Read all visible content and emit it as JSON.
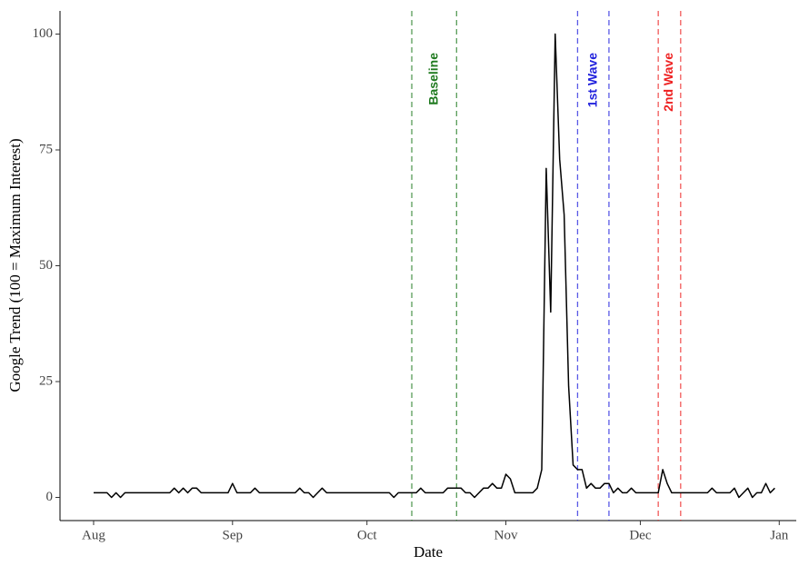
{
  "chart_data": {
    "type": "line",
    "xlabel": "Date",
    "ylabel": "Google Trend (100 = Maximum Interest)",
    "x": [
      0,
      1,
      2,
      3,
      4,
      5,
      6,
      7,
      8,
      9,
      10,
      11,
      12,
      13,
      14,
      15,
      16,
      17,
      18,
      19,
      20,
      21,
      22,
      23,
      24,
      25,
      26,
      27,
      28,
      29,
      30,
      31,
      32,
      33,
      34,
      35,
      36,
      37,
      38,
      39,
      40,
      41,
      42,
      43,
      44,
      45,
      46,
      47,
      48,
      49,
      50,
      51,
      52,
      53,
      54,
      55,
      56,
      57,
      58,
      59,
      60,
      61,
      62,
      63,
      64,
      65,
      66,
      67,
      68,
      69,
      70,
      71,
      72,
      73,
      74,
      75,
      76,
      77,
      78,
      79,
      80,
      81,
      82,
      83,
      84,
      85,
      86,
      87,
      88,
      89,
      90,
      91,
      92,
      93,
      94,
      95,
      96,
      97,
      98,
      99,
      100,
      101,
      102,
      103,
      104,
      105,
      106,
      107,
      108,
      109,
      110,
      111,
      112,
      113,
      114,
      115,
      116,
      117,
      118,
      119,
      120,
      121,
      122,
      123,
      124,
      125,
      126,
      127,
      128,
      129,
      130,
      131,
      132,
      133,
      134,
      135,
      136,
      137,
      138,
      139,
      140,
      141,
      142,
      143,
      144,
      145,
      146,
      147,
      148,
      149,
      150,
      151,
      152
    ],
    "values": [
      1,
      1,
      1,
      1,
      0,
      1,
      0,
      1,
      1,
      1,
      1,
      1,
      1,
      1,
      1,
      1,
      1,
      1,
      2,
      1,
      2,
      1,
      2,
      2,
      1,
      1,
      1,
      1,
      1,
      1,
      1,
      3,
      1,
      1,
      1,
      1,
      2,
      1,
      1,
      1,
      1,
      1,
      1,
      1,
      1,
      1,
      2,
      1,
      1,
      0,
      1,
      2,
      1,
      1,
      1,
      1,
      1,
      1,
      1,
      1,
      1,
      1,
      1,
      1,
      1,
      1,
      1,
      0,
      1,
      1,
      1,
      1,
      1,
      2,
      1,
      1,
      1,
      1,
      1,
      2,
      2,
      2,
      2,
      1,
      1,
      0,
      1,
      2,
      2,
      3,
      2,
      2,
      5,
      4,
      1,
      1,
      1,
      1,
      1,
      2,
      6,
      71,
      40,
      100,
      73,
      61,
      24,
      7,
      6,
      6,
      2,
      3,
      2,
      2,
      3,
      3,
      1,
      2,
      1,
      1,
      2,
      1,
      1,
      1,
      1,
      1,
      1,
      6,
      3,
      1,
      1,
      1,
      1,
      1,
      1,
      1,
      1,
      1,
      2,
      1,
      1,
      1,
      1,
      2,
      0,
      1,
      2,
      0,
      1,
      1,
      3,
      1,
      2
    ],
    "color": "#000000",
    "xlim": [
      -7.5,
      156.8
    ],
    "xticks": [
      {
        "value": 0,
        "label": "Aug"
      },
      {
        "value": 31,
        "label": "Sep"
      },
      {
        "value": 61,
        "label": "Oct"
      },
      {
        "value": 92,
        "label": "Nov"
      },
      {
        "value": 122,
        "label": "Dec"
      },
      {
        "value": 153,
        "label": "Jan"
      }
    ],
    "ylim": [
      -5,
      105
    ],
    "yticks": [
      0,
      25,
      50,
      75,
      100
    ],
    "periods": [
      {
        "label": "Baseline",
        "start": 71,
        "end": 81,
        "color": "#1f7a1f"
      },
      {
        "label": "1st Wave",
        "start": 108,
        "end": 115,
        "color": "#2222dd"
      },
      {
        "label": "2nd Wave",
        "start": 126,
        "end": 131,
        "color": "#ee2222"
      }
    ]
  }
}
